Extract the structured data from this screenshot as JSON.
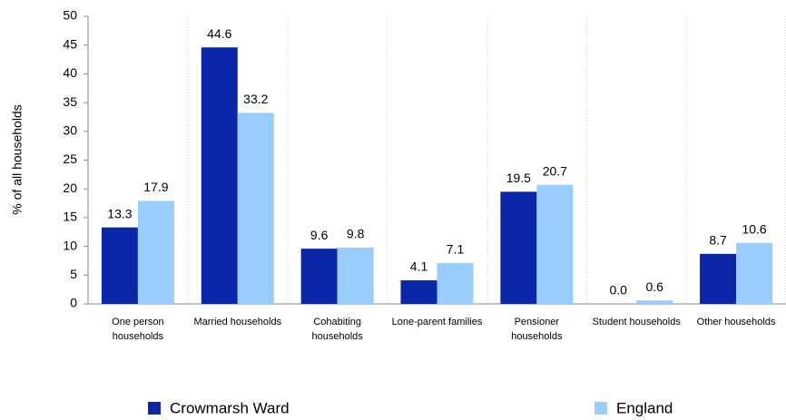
{
  "chart_data": {
    "type": "bar",
    "y_label": "% of all households",
    "categories": [
      "One person households",
      "Married households",
      "Cohabiting households",
      "Lone-parent families",
      "Pensioner households",
      "Student households",
      "Other households"
    ],
    "series": [
      {
        "name": "Crowmarsh Ward",
        "color": "#0b27a8",
        "values": [
          13.3,
          44.6,
          9.6,
          4.1,
          19.5,
          0,
          8.7
        ],
        "value_labels": [
          "13.3",
          "44.6",
          "9.6",
          "4.1",
          "19.5",
          "0.0",
          "8.7"
        ]
      },
      {
        "name": "England",
        "color": "#99ccff",
        "values": [
          17.9,
          33.2,
          9.8,
          7.1,
          20.7,
          0.6,
          10.6
        ],
        "value_labels": [
          "17.9",
          "33.2",
          "9.8",
          "7.1",
          "20.7",
          "0.6",
          "10.6"
        ]
      }
    ],
    "ylim": [
      0,
      50
    ],
    "yticks": [
      0,
      5,
      10,
      15,
      20,
      25,
      30,
      35,
      40,
      45,
      50
    ],
    "grid": true
  }
}
